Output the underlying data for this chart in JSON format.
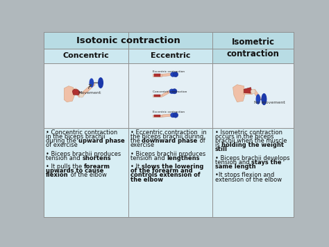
{
  "title_isotonic": "Isotonic contraction",
  "title_isometric": "Isometric\ncontraction",
  "col1_header": "Concentric",
  "col2_header": "Eccentric",
  "header_bg": "#b8dce4",
  "subheader_bg": "#cce8f0",
  "text_bg": "#d8eef4",
  "border_color": "#909090",
  "text_color": "#222222",
  "fig_bg": "#b0b8bc",
  "figw": 4.74,
  "figh": 3.55,
  "dpi": 100,
  "col1_lines": [
    [
      "• Concentric contraction",
      false
    ],
    [
      "in the biceps brachii",
      false
    ],
    [
      "during the ",
      false,
      "upward phase",
      true
    ],
    [
      "of exercise",
      false
    ],
    [
      "",
      false
    ],
    [
      "• Biceps brachii produces",
      false
    ],
    [
      "tension and ",
      false,
      "shortens",
      true
    ],
    [
      "",
      false
    ],
    [
      "• It pulls the ",
      false,
      "forearm",
      true
    ],
    [
      "upwards to cause",
      true
    ],
    [
      "flexion",
      true,
      " of the elbow",
      false
    ]
  ],
  "col2_lines": [
    [
      "• Eccentric contraction  in",
      false
    ],
    [
      "the biceps brachii during",
      false
    ],
    [
      "the ",
      false,
      "downward phase",
      true,
      " of",
      false
    ],
    [
      "exercise",
      false
    ],
    [
      "",
      false
    ],
    [
      "• Biceps brachii produces",
      false
    ],
    [
      "tension and ",
      false,
      "lengthens",
      true
    ],
    [
      "",
      false
    ],
    [
      "• It ",
      false,
      "slows the lowering",
      true
    ],
    [
      "of the forearm and",
      true
    ],
    [
      "controls extension of",
      true
    ],
    [
      "the elbow",
      true
    ]
  ],
  "col3_lines": [
    [
      "• Isometric contraction",
      false
    ],
    [
      "occurs in the biceps",
      false
    ],
    [
      "brachii when the muscle",
      false
    ],
    [
      "is ",
      false,
      "holding the weight",
      true
    ],
    [
      "still",
      true
    ],
    [
      "",
      false
    ],
    [
      "• Biceps brachii develops",
      false
    ],
    [
      "tension and ",
      false,
      "stays the",
      true
    ],
    [
      "same length",
      true
    ],
    [
      "",
      false
    ],
    [
      "•It stops flexion and",
      false
    ],
    [
      "extension of the elbow",
      false
    ]
  ]
}
